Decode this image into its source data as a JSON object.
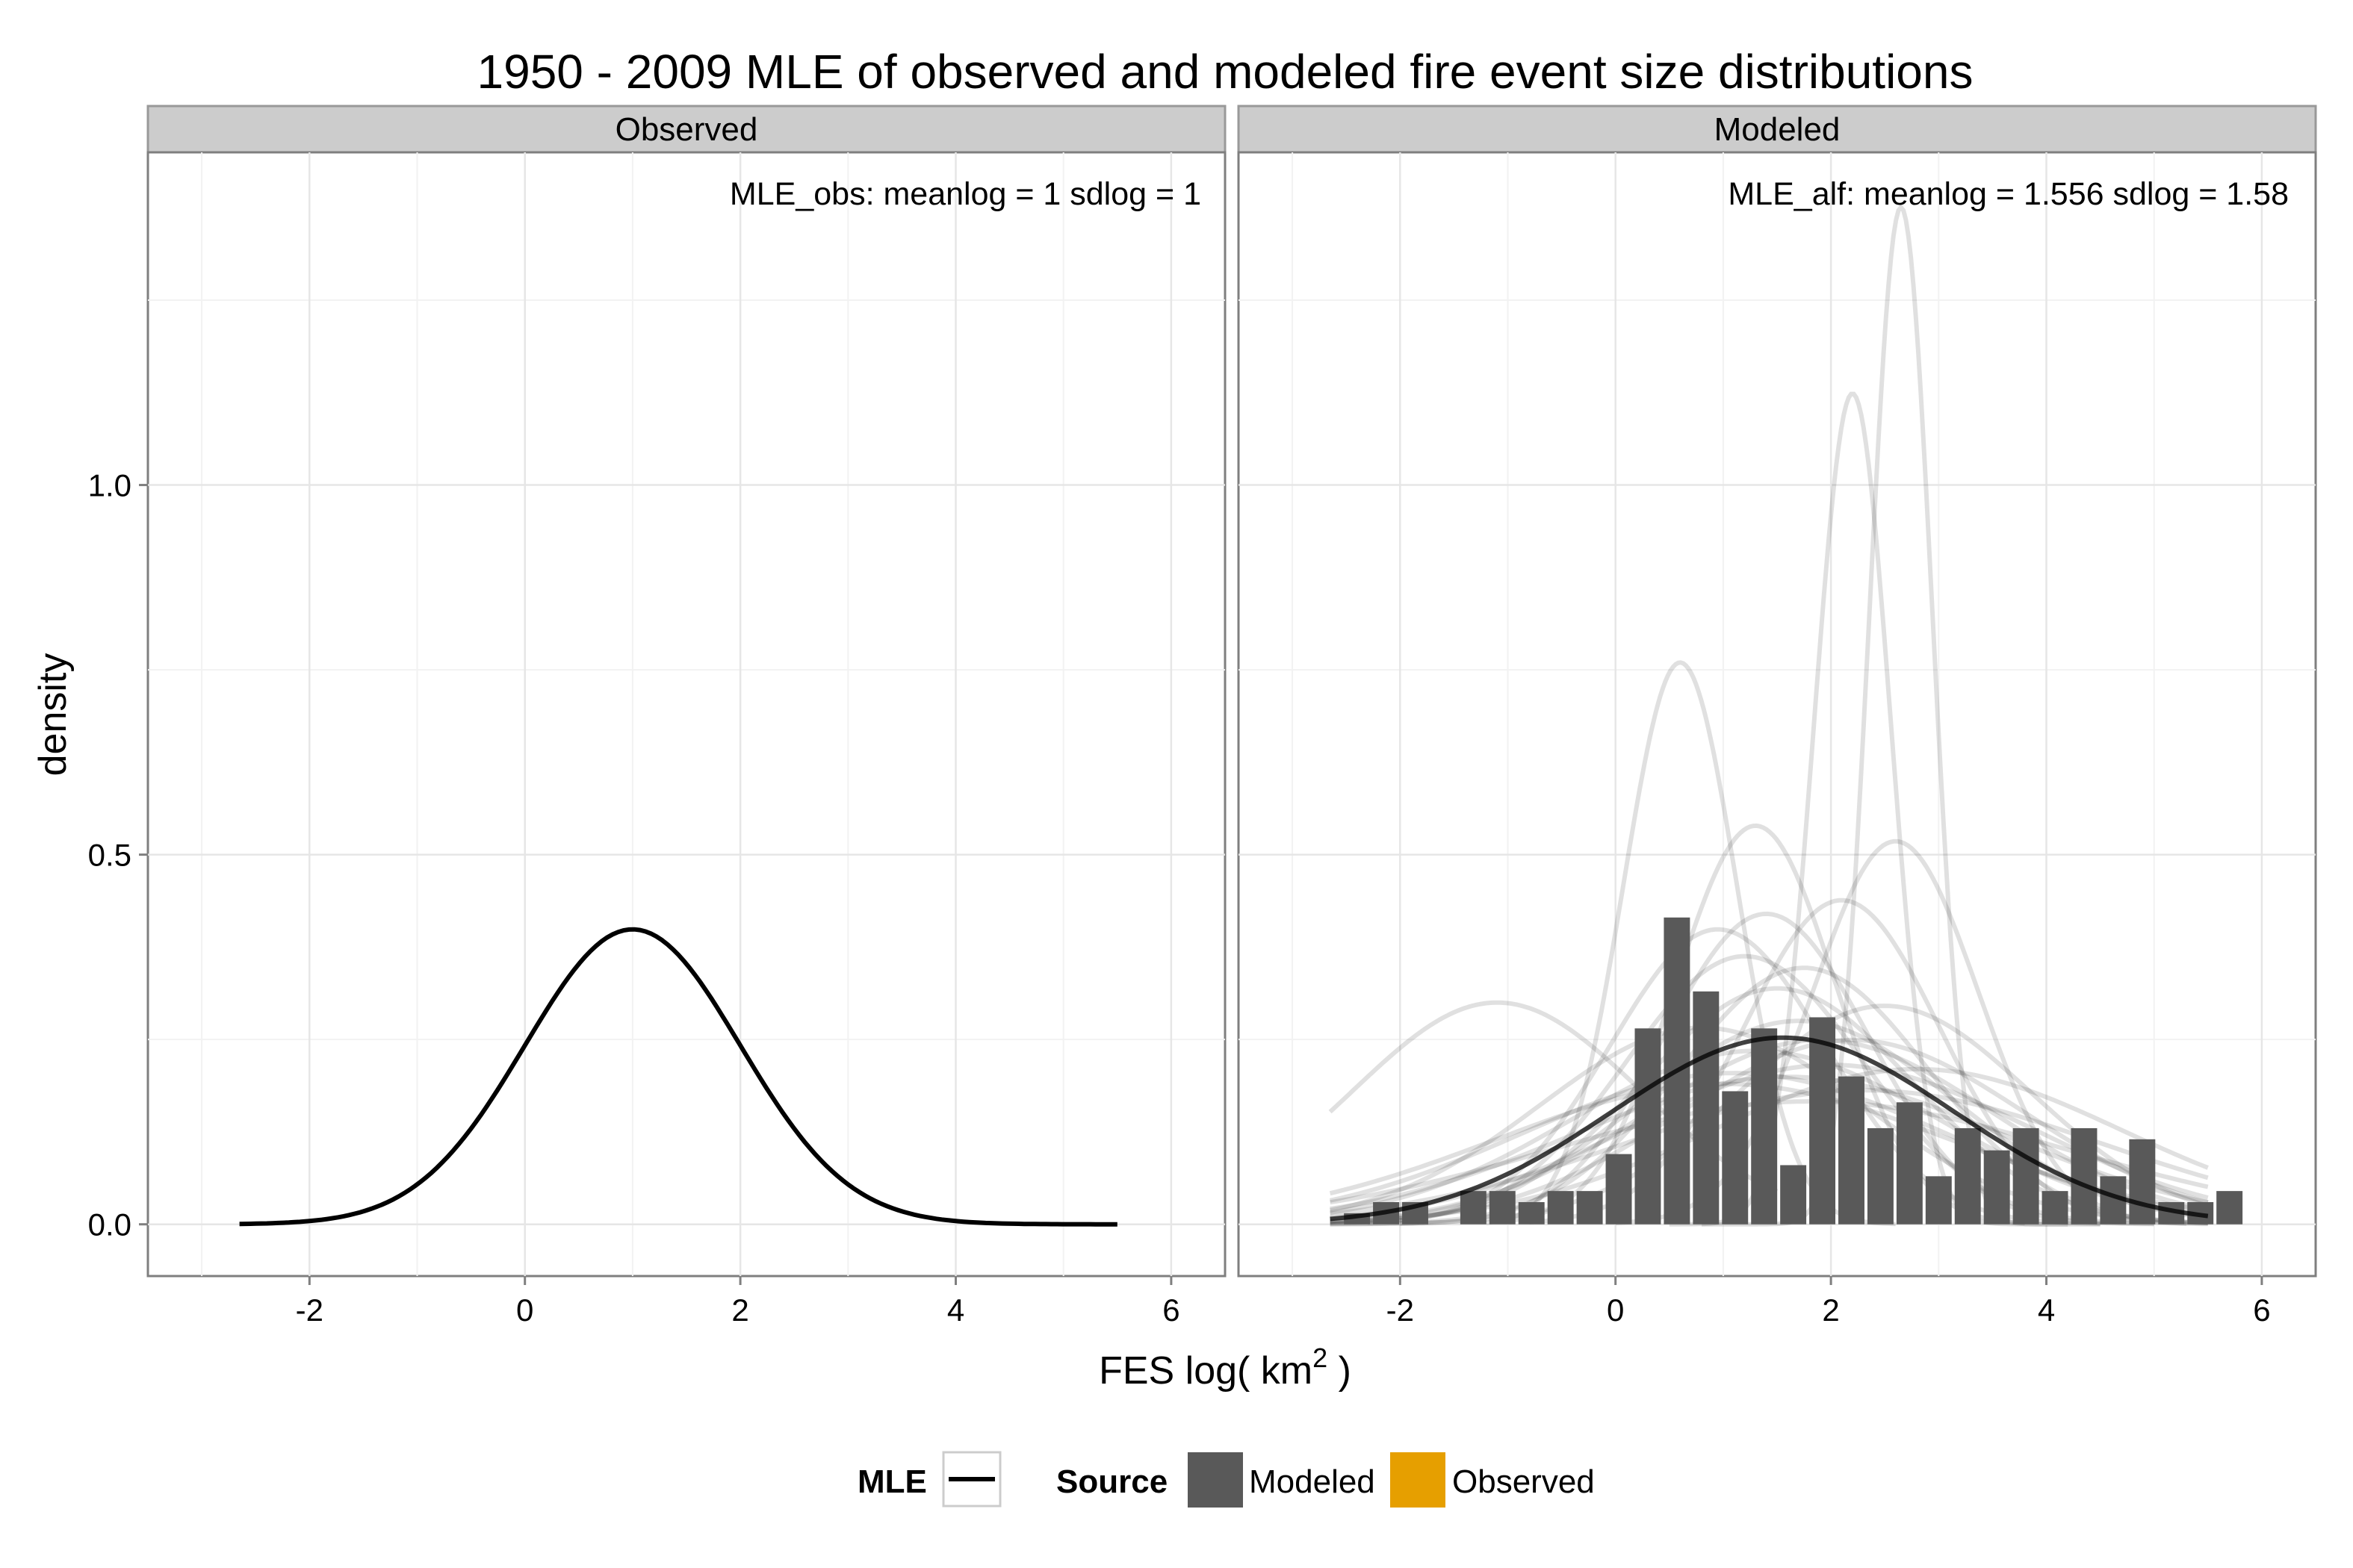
{
  "chart_data": {
    "type": "faceted-histogram-density",
    "title": "1950 - 2009 MLE of observed and modeled fire event size distributions",
    "xlabel_main": "FES log( km",
    "xlabel_sup": "2",
    "xlabel_end": " )",
    "ylabel": "density",
    "xlim": [
      -3.5,
      6.5
    ],
    "ylim": [
      -0.07,
      1.45
    ],
    "x_ticks": [
      -2,
      0,
      2,
      4,
      6
    ],
    "y_ticks": [
      0.0,
      0.5,
      1.0
    ],
    "x_tick_labels": [
      "-2",
      "0",
      "2",
      "4",
      "6"
    ],
    "y_tick_labels": [
      "0.0",
      "0.5",
      "1.0"
    ],
    "grid": true,
    "legend_position": "bottom",
    "legend": {
      "mle_title": "MLE",
      "source_title": "Source",
      "source_items": [
        {
          "label": "Modeled",
          "color": "#595959"
        },
        {
          "label": "Observed",
          "color": "#E69F00"
        }
      ]
    },
    "panels": [
      {
        "strip": "Observed",
        "annotation": "MLE_obs: meanlog = 1 sdlog = 1",
        "mle": {
          "meanlog": 1,
          "sdlog": 1,
          "x_range": [
            -2.65,
            5.5
          ]
        }
      },
      {
        "strip": "Modeled",
        "annotation": "MLE_alf: meanlog = 1.556 sdlog = 1.58",
        "histogram": {
          "bin_width": 0.27,
          "bin_centers": [
            -2.4,
            -2.13,
            -1.86,
            -1.59,
            -1.32,
            -1.05,
            -0.78,
            -0.51,
            -0.24,
            0.03,
            0.3,
            0.57,
            0.84,
            1.11,
            1.38,
            1.65,
            1.92,
            2.19,
            2.46,
            2.73,
            3.0,
            3.27,
            3.54,
            3.81,
            4.08,
            4.35,
            4.62,
            4.89,
            5.16,
            5.43,
            5.7
          ],
          "counts_density": [
            0.015,
            0.03,
            0.03,
            0.0,
            0.045,
            0.045,
            0.03,
            0.045,
            0.045,
            0.095,
            0.265,
            0.415,
            0.315,
            0.18,
            0.265,
            0.08,
            0.28,
            0.2,
            0.13,
            0.165,
            0.065,
            0.13,
            0.1,
            0.13,
            0.045,
            0.13,
            0.065,
            0.115,
            0.03,
            0.03,
            0.045
          ]
        },
        "mle": {
          "meanlog": 1.556,
          "sdlog": 1.58,
          "x_range": [
            -2.65,
            5.5
          ]
        },
        "sample_curves": [
          {
            "meanlog": 2.65,
            "sdlog": 0.29,
            "x_range": [
              0.8,
              4.5
            ]
          },
          {
            "meanlog": 2.2,
            "sdlog": 0.355,
            "x_range": [
              0.5,
              4.2
            ]
          },
          {
            "meanlog": 0.6,
            "sdlog": 0.525,
            "x_range": [
              -1.2,
              2.6
            ]
          },
          {
            "meanlog": 1.3,
            "sdlog": 0.74,
            "x_range": [
              -1.0,
              3.8
            ]
          },
          {
            "meanlog": 2.6,
            "sdlog": 0.77,
            "x_range": [
              0.0,
              5.3
            ]
          },
          {
            "meanlog": 2.1,
            "sdlog": 0.91,
            "x_range": [
              -0.8,
              5.5
            ]
          },
          {
            "meanlog": 0.95,
            "sdlog": 1.0,
            "x_range": [
              -2.0,
              4.5
            ]
          },
          {
            "meanlog": 1.2,
            "sdlog": 1.1,
            "x_range": [
              -2.3,
              5.0
            ]
          },
          {
            "meanlog": -1.1,
            "sdlog": 1.33,
            "x_range": [
              -2.65,
              1.5
            ]
          },
          {
            "meanlog": 1.5,
            "sdlog": 1.25,
            "x_range": [
              -2.65,
              5.5
            ]
          },
          {
            "meanlog": 1.7,
            "sdlog": 1.45,
            "x_range": [
              -2.65,
              5.5
            ]
          },
          {
            "meanlog": 1.9,
            "sdlog": 1.6,
            "x_range": [
              -2.65,
              5.5
            ]
          },
          {
            "meanlog": 1.3,
            "sdlog": 1.7,
            "x_range": [
              -2.65,
              5.5
            ]
          },
          {
            "meanlog": 2.0,
            "sdlog": 1.85,
            "x_range": [
              -2.65,
              5.5
            ]
          },
          {
            "meanlog": 1.6,
            "sdlog": 2.0,
            "x_range": [
              -2.65,
              5.5
            ]
          },
          {
            "meanlog": 2.3,
            "sdlog": 2.2,
            "x_range": [
              -2.65,
              5.5
            ]
          },
          {
            "meanlog": 1.0,
            "sdlog": 2.1,
            "x_range": [
              -2.65,
              5.5
            ]
          },
          {
            "meanlog": 1.8,
            "sdlog": 2.4,
            "x_range": [
              -2.65,
              5.5
            ]
          },
          {
            "meanlog": 2.5,
            "sdlog": 1.35,
            "x_range": [
              -2.65,
              5.5
            ]
          },
          {
            "meanlog": 1.4,
            "sdlog": 0.95,
            "x_range": [
              -2.0,
              5.0
            ]
          },
          {
            "meanlog": 1.75,
            "sdlog": 1.15,
            "x_range": [
              -2.65,
              5.5
            ]
          },
          {
            "meanlog": 0.8,
            "sdlog": 1.5,
            "x_range": [
              -2.65,
              5.5
            ]
          },
          {
            "meanlog": 2.8,
            "sdlog": 1.9,
            "x_range": [
              -2.65,
              5.5
            ]
          },
          {
            "meanlog": 1.1,
            "sdlog": 1.95,
            "x_range": [
              -2.65,
              5.5
            ]
          },
          {
            "meanlog": 2.2,
            "sdlog": 1.6,
            "x_range": [
              -2.65,
              5.5
            ]
          }
        ]
      }
    ]
  }
}
